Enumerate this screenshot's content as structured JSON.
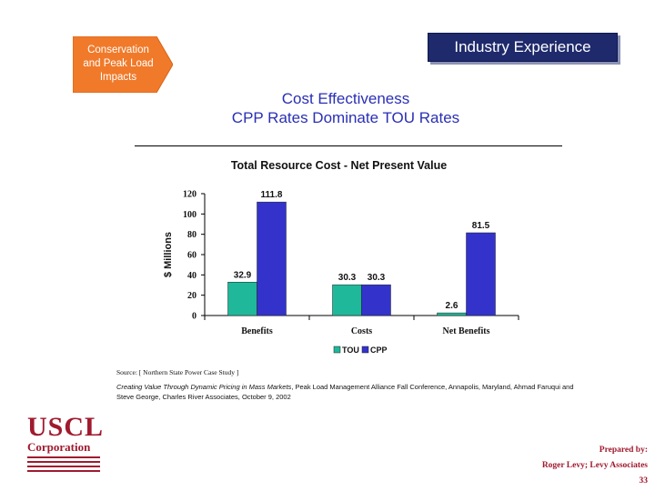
{
  "header": {
    "section_tag_lines": [
      "Conservation",
      "and Peak Load",
      "Impacts"
    ],
    "industry_label": "Industry Experience"
  },
  "title": {
    "line1": "Cost Effectiveness",
    "line2": "CPP Rates Dominate TOU Rates"
  },
  "colors": {
    "tou": "#1fb89a",
    "cpp": "#3333cc",
    "title_blue": "#2a2fb5",
    "brand_red": "#a01a2e",
    "tag_orange": "#f07a2a",
    "navy": "#1e2a6b"
  },
  "chart_data": {
    "type": "bar",
    "title": "Total Resource Cost - Net Present Value",
    "categories": [
      "Benefits",
      "Costs",
      "Net Benefits"
    ],
    "series": [
      {
        "name": "TOU",
        "values": [
          32.9,
          30.3,
          2.6
        ],
        "labels": [
          "32.9",
          "30.3",
          "2.6"
        ]
      },
      {
        "name": "CPP",
        "values": [
          111.8,
          30.3,
          81.5
        ],
        "labels": [
          "111.8",
          "30.3",
          "81.5"
        ]
      }
    ],
    "ylabel": "$ Millions",
    "xlabel": "",
    "ylim": [
      0,
      120
    ],
    "yticks": [
      0,
      20,
      40,
      60,
      80,
      100,
      120
    ],
    "legend": "bottom-center"
  },
  "source": "Source: [ Northern State Power Case Study ]",
  "citation": {
    "title_italic": "Creating Value Through Dynamic Pricing in Mass Markets",
    "rest": ", Peak Load Management Alliance Fall Conference, Annapolis, Maryland, Ahmad Faruqui and Steve George, Charles River Associates, October 9, 2002"
  },
  "logo": {
    "name": "USCL",
    "sub": "Corporation"
  },
  "footer": {
    "prepared_by": "Prepared by:",
    "author": "Roger Levy; Levy Associates",
    "page_number": "33"
  }
}
